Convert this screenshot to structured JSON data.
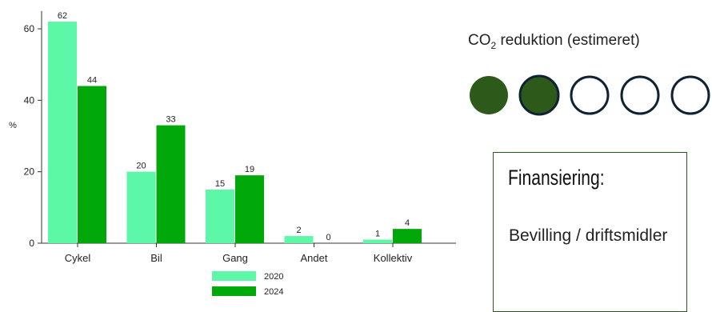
{
  "chart_data": {
    "type": "bar",
    "categories": [
      "Cykel",
      "Bil",
      "Gang",
      "Andet",
      "Kollektiv"
    ],
    "series": [
      {
        "name": "2020",
        "values": [
          62,
          20,
          15,
          2,
          1
        ],
        "color": "#5cf8a8"
      },
      {
        "name": "2024",
        "values": [
          44,
          33,
          19,
          0,
          4
        ],
        "color": "#00a80a"
      }
    ],
    "ylabel": "%",
    "ylim": [
      0,
      65
    ],
    "yticks": [
      0,
      20,
      40,
      60
    ],
    "legend_position": "bottom",
    "grid": false
  },
  "co2": {
    "title_prefix": "CO",
    "title_sub": "2",
    "title_suffix": " reduktion (estimeret)",
    "rating": 2,
    "max": 5,
    "filled_color": "#2d5a1b",
    "outline_color": "#0f2233"
  },
  "financing": {
    "title": "Finansiering:",
    "text": "Bevilling / driftsmidler"
  }
}
